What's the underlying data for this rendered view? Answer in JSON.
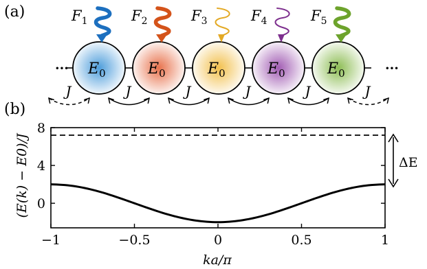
{
  "panel_a": {
    "label": "(a)",
    "site_label": "E",
    "site_subscript": "0",
    "left_dots": "···",
    "right_dots": "···",
    "coupling_label": "J",
    "sites": [
      {
        "drive": "F",
        "drive_sub": "1",
        "color": "#1c6fbf",
        "fill": "#4d9ddb"
      },
      {
        "drive": "F",
        "drive_sub": "2",
        "color": "#d4531a",
        "fill": "#e8724c"
      },
      {
        "drive": "F",
        "drive_sub": "3",
        "color": "#e3a924",
        "fill": "#f2c04d"
      },
      {
        "drive": "F",
        "drive_sub": "4",
        "color": "#7d2f8e",
        "fill": "#a15cb3"
      },
      {
        "drive": "F",
        "drive_sub": "5",
        "color": "#6da32c",
        "fill": "#8dbd54"
      }
    ]
  },
  "panel_b": {
    "label": "(b)",
    "ylabel": "(E(k) − E0)/J",
    "xlabel": "ka/π",
    "band_gap_label": "ΔE"
  },
  "chart_data": {
    "type": "line",
    "xlim": [
      -1,
      1
    ],
    "ylim": [
      -2.6,
      8
    ],
    "xticks": [
      "−1",
      "−0.5",
      "0",
      "0.5",
      "1"
    ],
    "yticks": [
      "0",
      "4",
      "8"
    ],
    "xtick_values": [
      -1,
      -0.5,
      0,
      0.5,
      1
    ],
    "ytick_values": [
      0,
      4,
      8
    ],
    "series": [
      {
        "style": "solid",
        "x": [
          -1,
          -0.9,
          -0.8,
          -0.7,
          -0.6,
          -0.5,
          -0.4,
          -0.3,
          -0.2,
          -0.1,
          0,
          0.1,
          0.2,
          0.3,
          0.4,
          0.5,
          0.6,
          0.7,
          0.8,
          0.9,
          1
        ],
        "y": [
          2,
          1.9,
          1.62,
          1.18,
          0.62,
          0,
          -0.62,
          -1.18,
          -1.62,
          -1.9,
          -2,
          -1.9,
          -1.62,
          -1.18,
          -0.62,
          0,
          0.62,
          1.18,
          1.62,
          1.9,
          2
        ]
      },
      {
        "style": "dashed",
        "x": [
          -1,
          1
        ],
        "y": [
          7.2,
          7.2
        ]
      }
    ],
    "grid": false
  }
}
